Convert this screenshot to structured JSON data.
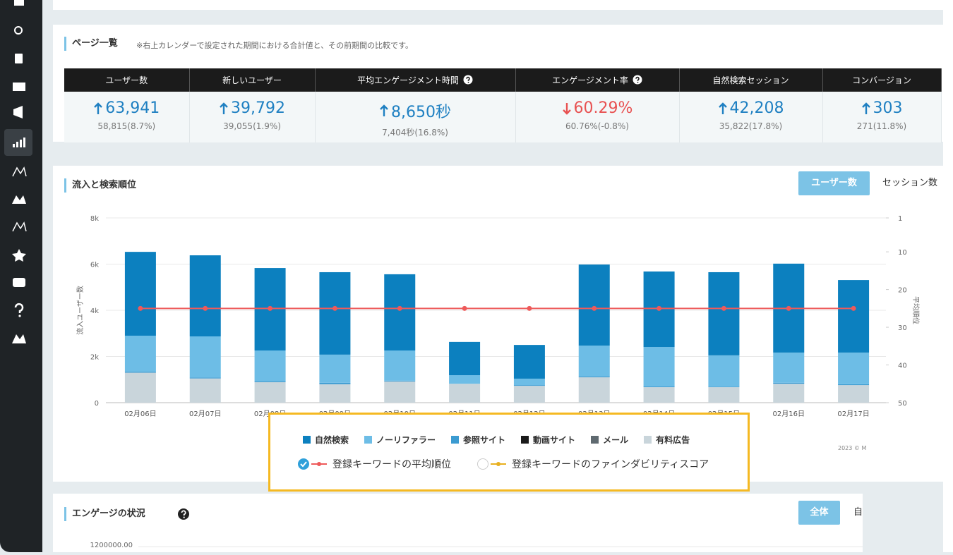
{
  "top_section": {
    "title": "ページ一覧",
    "note": "※右上カレンダーで設定された期間における合計値と、その前期間の比較です。",
    "metrics": [
      {
        "label": "ユーザー数",
        "value": "63,941",
        "direction": "up",
        "previous": "58,815(8.7%)",
        "help": false
      },
      {
        "label": "新しいユーザー",
        "value": "39,792",
        "direction": "up",
        "previous": "39,055(1.9%)",
        "help": false
      },
      {
        "label": "平均エンゲージメント時間",
        "value": "8,650秒",
        "direction": "up",
        "previous": "7,404秒(16.8%)",
        "help": true
      },
      {
        "label": "エンゲージメント率",
        "value": "60.29%",
        "direction": "down",
        "previous": "60.76%(-0.8%)",
        "help": true
      },
      {
        "label": "自然検索セッション",
        "value": "42,208",
        "direction": "up",
        "previous": "35,822(17.8%)",
        "help": false
      },
      {
        "label": "コンバージョン",
        "value": "303",
        "direction": "up",
        "previous": "271(11.8%)",
        "help": false
      }
    ]
  },
  "chart_section": {
    "title": "流入と検索順位",
    "buttons": [
      {
        "label": "ユーザー数",
        "active": true
      },
      {
        "label": "セッション数",
        "active": false
      }
    ],
    "copyright": "2023 © M"
  },
  "chart_data": {
    "type": "bar",
    "stacked": true,
    "categories": [
      "02月06日",
      "02月07日",
      "02月08日",
      "02月09日",
      "02月10日",
      "02月11日",
      "02月12日",
      "02月13日",
      "02月14日",
      "02月15日",
      "02月16日",
      "02月17日"
    ],
    "ylabel": "流入ユーザー数",
    "y2label": "平均順位",
    "ylim": [
      0,
      8000
    ],
    "yticks": [
      0,
      {
        "value": 2000,
        "label": "2k"
      },
      {
        "value": 4000,
        "label": "4k"
      },
      {
        "value": 6000,
        "label": "6k"
      },
      {
        "value": 8000,
        "label": "8k"
      }
    ],
    "y2lim": [
      50,
      1
    ],
    "y2ticks": [
      1,
      10,
      20,
      30,
      40,
      50
    ],
    "grid": true,
    "series": [
      {
        "name": "有料広告",
        "color": "#c9d5db",
        "legend_order": 5,
        "values": [
          1300,
          1050,
          890,
          800,
          920,
          820,
          730,
          1100,
          670,
          670,
          820,
          760
        ]
      },
      {
        "name": "メール",
        "color": "#5f6a70",
        "legend_order": 4,
        "values": [
          0,
          0,
          0,
          0,
          0,
          0,
          0,
          0,
          0,
          0,
          0,
          0
        ]
      },
      {
        "name": "動画サイト",
        "color": "#1a1a1a",
        "legend_order": 3,
        "values": [
          0,
          0,
          0,
          0,
          0,
          0,
          0,
          0,
          0,
          0,
          0,
          0
        ]
      },
      {
        "name": "参照サイト",
        "color": "#3b9bd1",
        "legend_order": 2,
        "values": [
          50,
          40,
          40,
          60,
          30,
          0,
          30,
          40,
          30,
          20,
          40,
          40
        ]
      },
      {
        "name": "ノーリファラー",
        "color": "#6dbde6",
        "legend_order": 1,
        "values": [
          1550,
          1780,
          1330,
          1220,
          1310,
          370,
          280,
          1330,
          1710,
          1360,
          1310,
          1370
        ]
      },
      {
        "name": "自然検索",
        "color": "#0c80bf",
        "legend_order": 0,
        "values": [
          3630,
          3510,
          3570,
          3570,
          3300,
          1440,
          1460,
          3510,
          3270,
          3600,
          3850,
          3140
        ]
      },
      {
        "name": "登録キーワードの平均順位",
        "type": "line",
        "axis": "y2",
        "color": "#ee5a5a",
        "checked": true,
        "values": [
          25,
          25,
          25,
          25,
          25,
          25,
          25,
          25,
          25,
          25,
          25,
          25
        ]
      },
      {
        "name": "登録キーワードのファインダビリティスコア",
        "type": "line",
        "axis": "y2",
        "color": "#e8b020",
        "checked": false,
        "values": [
          null,
          null,
          null,
          null,
          null,
          null,
          null,
          null,
          null,
          null,
          null,
          null
        ]
      }
    ]
  },
  "engagement_section": {
    "title": "エンゲージの状況",
    "buttons": [
      {
        "label": "全体",
        "active": true
      },
      {
        "label": "自",
        "active": false
      }
    ],
    "ytick": "1200000.00"
  }
}
